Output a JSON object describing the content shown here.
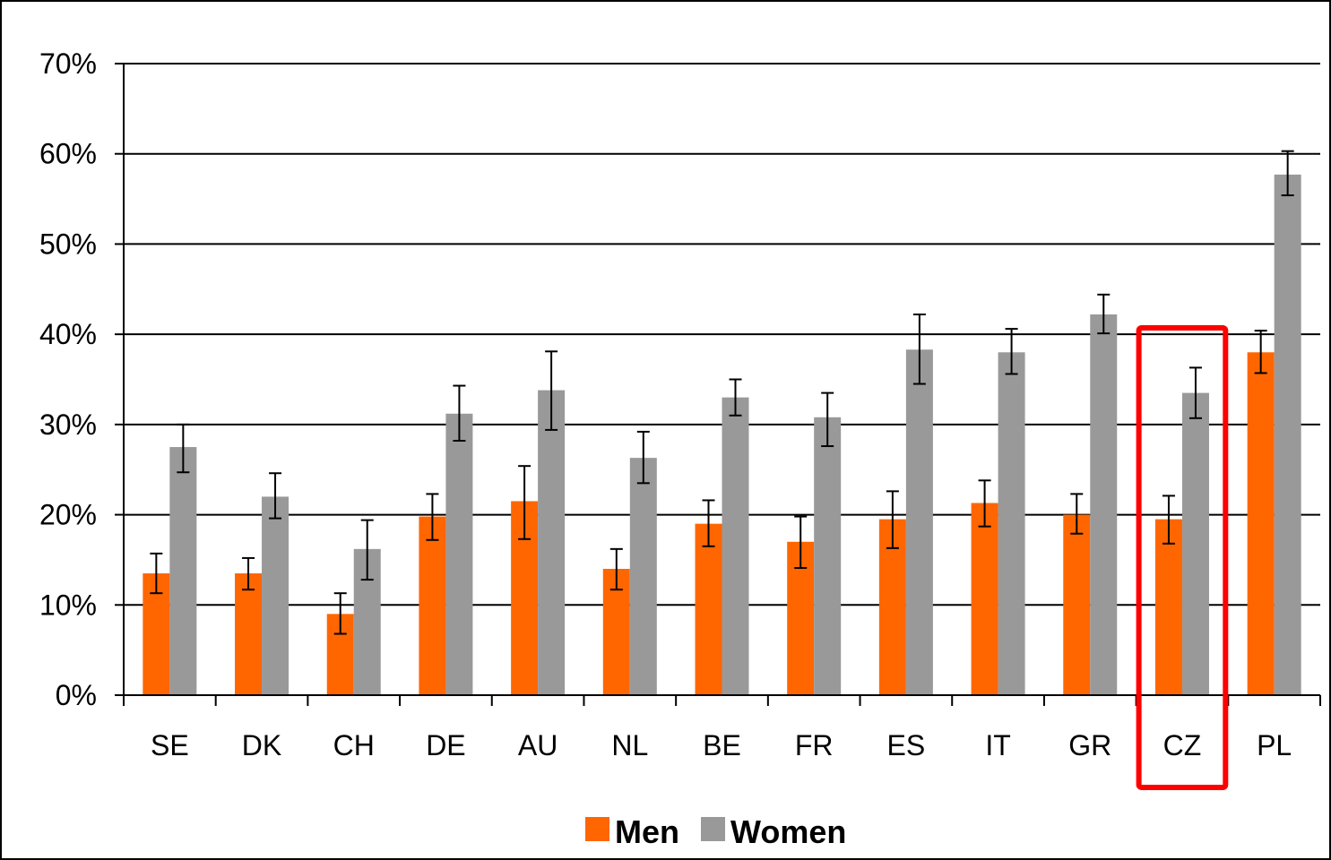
{
  "chart_data": {
    "type": "bar",
    "categories": [
      "SE",
      "DK",
      "CH",
      "DE",
      "AU",
      "NL",
      "BE",
      "FR",
      "ES",
      "IT",
      "GR",
      "CZ",
      "PL"
    ],
    "series": [
      {
        "name": "Men",
        "color": "#ff6600",
        "values": [
          13.5,
          13.5,
          9.0,
          19.8,
          21.5,
          14.0,
          19.0,
          17.0,
          19.5,
          21.3,
          20.0,
          19.5,
          38.0
        ],
        "error_low": [
          11.3,
          11.7,
          6.8,
          17.2,
          17.3,
          11.7,
          16.5,
          14.1,
          16.3,
          18.7,
          17.9,
          16.8,
          35.7
        ],
        "error_high": [
          15.7,
          15.2,
          11.3,
          22.3,
          25.4,
          16.2,
          21.6,
          19.8,
          22.6,
          23.8,
          22.3,
          22.1,
          40.4
        ]
      },
      {
        "name": "Women",
        "color": "#999999",
        "values": [
          27.5,
          22.0,
          16.2,
          31.2,
          33.8,
          26.3,
          33.0,
          30.8,
          38.3,
          38.0,
          42.2,
          33.5,
          57.7
        ],
        "error_low": [
          24.7,
          19.6,
          12.8,
          28.2,
          29.4,
          23.5,
          31.0,
          27.6,
          34.5,
          35.6,
          40.1,
          30.7,
          55.4
        ],
        "error_high": [
          30.0,
          24.6,
          19.4,
          34.3,
          38.1,
          29.2,
          35.0,
          33.5,
          42.2,
          40.6,
          44.4,
          36.3,
          60.3
        ]
      }
    ],
    "yticks": [
      "0%",
      "10%",
      "20%",
      "30%",
      "40%",
      "50%",
      "60%",
      "70%"
    ],
    "ylim": [
      0,
      70
    ],
    "grid": true,
    "legend": "bottom",
    "highlight": {
      "category": "CZ",
      "color": "#ff0000"
    }
  }
}
